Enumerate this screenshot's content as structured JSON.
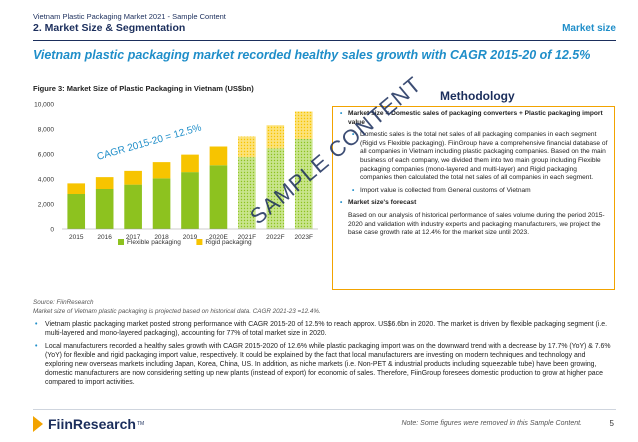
{
  "header": {
    "subtitle": "Vietnam Plastic Packaging Market 2021 - Sample Content",
    "title": "2. Market Size & Segmentation",
    "section": "Market size"
  },
  "headline": "Vietnam plastic packaging market recorded healthy sales growth with CAGR 2015-20 of 12.5%",
  "figure_caption": "Figure 3: Market Size of Plastic Packaging in Vietnam (US$bn)",
  "chart_data": {
    "type": "bar",
    "stacked": true,
    "categories": [
      "2015",
      "2016",
      "2017",
      "2018",
      "2019",
      "2020E",
      "2021F",
      "2022F",
      "2023F"
    ],
    "forecast_from_index": 6,
    "series": [
      {
        "name": "Flexible packaging",
        "color": "#8dc21f",
        "values": [
          2800,
          3200,
          3550,
          4050,
          4550,
          5100,
          5750,
          6450,
          7200
        ]
      },
      {
        "name": "Rigid packaging",
        "color": "#f7c400",
        "values": [
          850,
          950,
          1100,
          1300,
          1400,
          1500,
          1650,
          1850,
          2200
        ]
      }
    ],
    "ylim": [
      0,
      10000
    ],
    "yticks": [
      "0",
      "2,000",
      "4,000",
      "6,000",
      "8,000",
      "10,000"
    ],
    "annotation": "CAGR 2015-20 = 12.5%",
    "legend_position": "bottom",
    "grid": false
  },
  "methodology": {
    "title": "Methodology",
    "items": [
      {
        "level": 1,
        "text": "Market size = Domestic sales of packaging converters + Plastic packaging import value"
      },
      {
        "level": 2,
        "text": "Domestic sales is the total net sales of all packaging companies in each segment (Rigid vs Flexible packaging). FiinGroup have a comprehensive financial database of all companies in Vietnam including plastic packaging companies. Based on the main business of each company, we divided them into two main group including Flexible packaging companies (mono-layered and multi-layer) and Rigid packaging companies then calculated the total net sales of all companies in each segment."
      },
      {
        "level": 2,
        "text": "Import value is collected from General customs of Vietnam"
      },
      {
        "level": 1,
        "text": "Market size's forecast"
      },
      {
        "level": 3,
        "text": "Based on our analysis of historical performance of sales volume during the period 2015-2020 and validation with industry experts and packaging manufacturers, we project the base case growth rate at 12.4% for the market size until 2023."
      }
    ]
  },
  "watermark": "SAMPLE CONTENT",
  "source": {
    "line1": "Source: FiinResearch",
    "line2": "Market size of Vietnam plastic packaging is projected based on historical data. CAGR 2021-23 =12.4%."
  },
  "bullets": [
    "Vietnam plastic packaging market posted strong performance with CAGR 2015-20 of 12.5% to reach approx. US$6.6bn in 2020. The market is driven by flexible packaging segment (i.e. multi-layered and mono-layered packaging), accounting for 77% of total market size in 2020.",
    "Local manufacturers recorded a healthy sales growth with CAGR 2015-2020 of 12.6% while plastic packaging import was on the downward trend with a decrease by 17.7% (YoY) & 7.6% (YoY) for flexible and rigid packaging import value, respectively. It could be explained by the fact that local manufacturers are investing on modern techniques and technology and exploring new overseas markets including Japan, Korea, China, US. In addition, as niche markets (i.e. Non-PET & industrial products including squeezable tube) have been growing, domestic manufacturers are now considering setting up new plants (instead of export) for economic of sales. Therefore, FiinGroup foresees domestic production to grow at higher pace compared to import activities."
  ],
  "footer": {
    "logo_text": "FiinResearch",
    "logo_tm": "TM",
    "note": "Note: Some figures were removed in this Sample Content.",
    "page": "5"
  }
}
